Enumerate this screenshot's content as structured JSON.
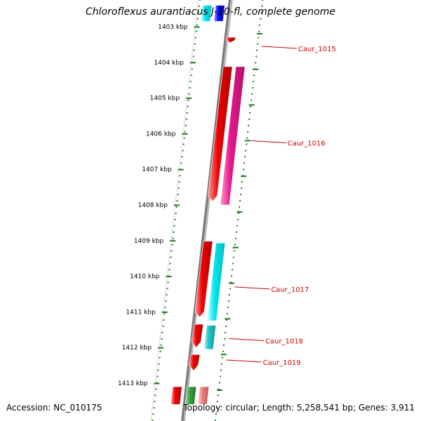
{
  "title": "Chloroflexus aurantiacus J-10-fl, complete genome",
  "footer": {
    "accession": "Accession: NC_010175",
    "topology": "Topology: circular; Length: 5,258,541 bp; Genes: 3,911"
  },
  "colors": {
    "backbone": "#7a7a7a",
    "tick": "#1a7a1a",
    "label": "#cc0000",
    "red": "#ee0000",
    "magenta": "#e6188c",
    "cyan": "#00e8f0",
    "blue": "#0010ff",
    "teal": "#20c4cc",
    "green": "#3aa040",
    "pink": "#f08080"
  },
  "ticks": [
    {
      "pos_kbp": 1403,
      "label": "1403 kbp"
    },
    {
      "pos_kbp": 1404,
      "label": "1404 kbp"
    },
    {
      "pos_kbp": 1405,
      "label": "1405 kbp"
    },
    {
      "pos_kbp": 1406,
      "label": "1406 kbp"
    },
    {
      "pos_kbp": 1407,
      "label": "1407 kbp"
    },
    {
      "pos_kbp": 1408,
      "label": "1408 kbp"
    },
    {
      "pos_kbp": 1409,
      "label": "1409 kbp"
    },
    {
      "pos_kbp": 1410,
      "label": "1410 kbp"
    },
    {
      "pos_kbp": 1411,
      "label": "1411 kbp"
    },
    {
      "pos_kbp": 1412,
      "label": "1412 kbp"
    },
    {
      "pos_kbp": 1413,
      "label": "1413 kbp"
    }
  ],
  "features": [
    {
      "start": 1402.4,
      "end": 1402.85,
      "lane": 1,
      "color": "cyan"
    },
    {
      "start": 1402.4,
      "end": 1402.85,
      "lane": 2,
      "color": "blue"
    },
    {
      "start": 1403.3,
      "end": 1403.45,
      "lane": 3,
      "color": "red",
      "strand": "-"
    },
    {
      "start": 1404.12,
      "end": 1407.9,
      "lane": 3,
      "color": "red",
      "strand": "-"
    },
    {
      "start": 1404.12,
      "end": 1408.0,
      "lane": 4,
      "color": "magenta"
    },
    {
      "start": 1409.02,
      "end": 1411.15,
      "lane": 3,
      "color": "red",
      "strand": "-"
    },
    {
      "start": 1409.07,
      "end": 1411.25,
      "lane": 4,
      "color": "cyan"
    },
    {
      "start": 1411.35,
      "end": 1412.0,
      "lane": 3,
      "color": "red",
      "strand": "-"
    },
    {
      "start": 1411.38,
      "end": 1412.05,
      "lane": 4,
      "color": "teal"
    },
    {
      "start": 1412.2,
      "end": 1412.65,
      "lane": 3,
      "color": "red",
      "strand": "-"
    },
    {
      "start": 1413.1,
      "end": 1413.6,
      "lane": 2,
      "color": "red"
    },
    {
      "start": 1413.1,
      "end": 1413.6,
      "lane": 3,
      "color": "green"
    },
    {
      "start": 1413.1,
      "end": 1413.6,
      "lane": 4,
      "color": "pink"
    }
  ],
  "labels": [
    {
      "text": "Caur_1015",
      "pos_kbp": 1403.55
    },
    {
      "text": "Caur_1016",
      "pos_kbp": 1406.2
    },
    {
      "text": "Caur_1017",
      "pos_kbp": 1410.3
    },
    {
      "text": "Caur_1018",
      "pos_kbp": 1411.75
    },
    {
      "text": "Caur_1019",
      "pos_kbp": 1412.35
    }
  ]
}
